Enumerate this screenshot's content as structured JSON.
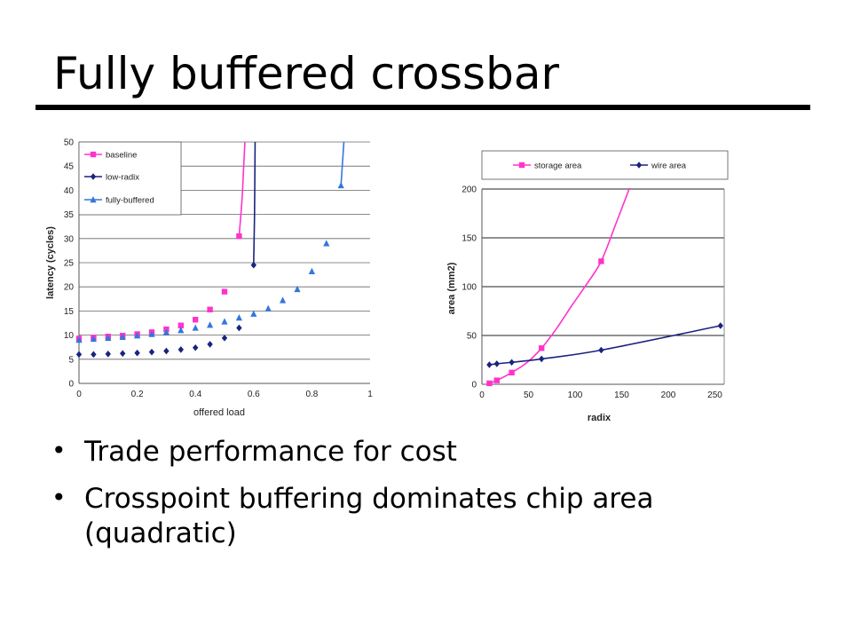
{
  "slide": {
    "title": "Fully buffered crossbar",
    "bullets": [
      "Trade performance for cost",
      "Crosspoint buffering dominates chip area (quadratic)"
    ]
  },
  "chart_data": [
    {
      "type": "line",
      "xlabel": "offered load",
      "ylabel": "latency (cycles)",
      "xlim": [
        0,
        1
      ],
      "ylim": [
        0,
        50
      ],
      "xticks": [
        "0",
        "0.2",
        "0.4",
        "0.6",
        "0.8",
        "1"
      ],
      "yticks": [
        "0",
        "5",
        "10",
        "15",
        "20",
        "25",
        "30",
        "35",
        "40",
        "45",
        "50"
      ],
      "grid": "horizontal",
      "legend": "top-left",
      "series": [
        {
          "name": "baseline",
          "color": "#ff33cc",
          "marker": "square",
          "points": [
            [
              0,
              9.3
            ],
            [
              0.05,
              9.5
            ],
            [
              0.1,
              9.7
            ],
            [
              0.15,
              9.9
            ],
            [
              0.2,
              10.2
            ],
            [
              0.25,
              10.6
            ],
            [
              0.3,
              11.2
            ],
            [
              0.35,
              12.0
            ],
            [
              0.4,
              13.2
            ],
            [
              0.45,
              15.3
            ],
            [
              0.5,
              19.0
            ],
            [
              0.55,
              30.5
            ]
          ],
          "curve": [
            [
              0.55,
              30.5
            ],
            [
              0.56,
              38
            ],
            [
              0.565,
              44
            ],
            [
              0.57,
              50
            ]
          ]
        },
        {
          "name": "low-radix",
          "color": "#1a237e",
          "marker": "diamond",
          "points": [
            [
              0,
              6.0
            ],
            [
              0.05,
              6.0
            ],
            [
              0.1,
              6.1
            ],
            [
              0.15,
              6.2
            ],
            [
              0.2,
              6.3
            ],
            [
              0.25,
              6.5
            ],
            [
              0.3,
              6.7
            ],
            [
              0.35,
              7.0
            ],
            [
              0.4,
              7.4
            ],
            [
              0.45,
              8.1
            ],
            [
              0.5,
              9.4
            ],
            [
              0.55,
              11.5
            ],
            [
              0.6,
              24.5
            ]
          ],
          "curve": [
            [
              0.6,
              24.5
            ],
            [
              0.603,
              35
            ],
            [
              0.605,
              50
            ]
          ]
        },
        {
          "name": "fully-buffered",
          "color": "#3377dd",
          "marker": "triangle",
          "points": [
            [
              0,
              9.0
            ],
            [
              0.05,
              9.2
            ],
            [
              0.1,
              9.4
            ],
            [
              0.15,
              9.6
            ],
            [
              0.2,
              9.9
            ],
            [
              0.25,
              10.2
            ],
            [
              0.3,
              10.6
            ],
            [
              0.35,
              11.0
            ],
            [
              0.4,
              11.5
            ],
            [
              0.45,
              12.1
            ],
            [
              0.5,
              12.8
            ],
            [
              0.55,
              13.6
            ],
            [
              0.6,
              14.4
            ],
            [
              0.65,
              15.5
            ],
            [
              0.7,
              17.2
            ],
            [
              0.75,
              19.5
            ],
            [
              0.8,
              23.2
            ],
            [
              0.85,
              29.0
            ],
            [
              0.9,
              41.0
            ]
          ],
          "curve": [
            [
              0.9,
              41.0
            ],
            [
              0.91,
              50
            ]
          ]
        }
      ]
    },
    {
      "type": "line",
      "xlabel": "radix",
      "ylabel": "area (mm2)",
      "xlim": [
        0,
        260
      ],
      "ylim": [
        0,
        200
      ],
      "xticks": [
        "0",
        "50",
        "100",
        "150",
        "200",
        "250"
      ],
      "xtick_values": [
        0,
        50,
        100,
        150,
        200,
        250
      ],
      "yticks": [
        "0",
        "50",
        "100",
        "150",
        "200"
      ],
      "grid": "horizontal",
      "legend": "top",
      "series": [
        {
          "name": "storage area",
          "color": "#ff33cc",
          "marker": "square",
          "points": [
            [
              8,
              1.0
            ],
            [
              16,
              4.0
            ],
            [
              32,
              12.0
            ],
            [
              64,
              37.0
            ],
            [
              128,
              126.0
            ]
          ],
          "curve": [
            [
              8,
              1.0
            ],
            [
              16,
              4.0
            ],
            [
              32,
              12.0
            ],
            [
              48,
              22.0
            ],
            [
              64,
              37.0
            ],
            [
              80,
              57.0
            ],
            [
              96,
              80.0
            ],
            [
              112,
              102.0
            ],
            [
              128,
              126.0
            ],
            [
              144,
              165.0
            ],
            [
              160,
              205.0
            ]
          ]
        },
        {
          "name": "wire area",
          "color": "#1a237e",
          "marker": "diamond",
          "points": [
            [
              8,
              20.0
            ],
            [
              16,
              21.0
            ],
            [
              32,
              22.5
            ],
            [
              64,
              26.0
            ],
            [
              128,
              35.0
            ],
            [
              256,
              60.0
            ]
          ],
          "curve": [
            [
              8,
              20.0
            ],
            [
              16,
              21.0
            ],
            [
              32,
              22.5
            ],
            [
              64,
              26.0
            ],
            [
              128,
              35.0
            ],
            [
              256,
              60.0
            ]
          ]
        }
      ]
    }
  ]
}
